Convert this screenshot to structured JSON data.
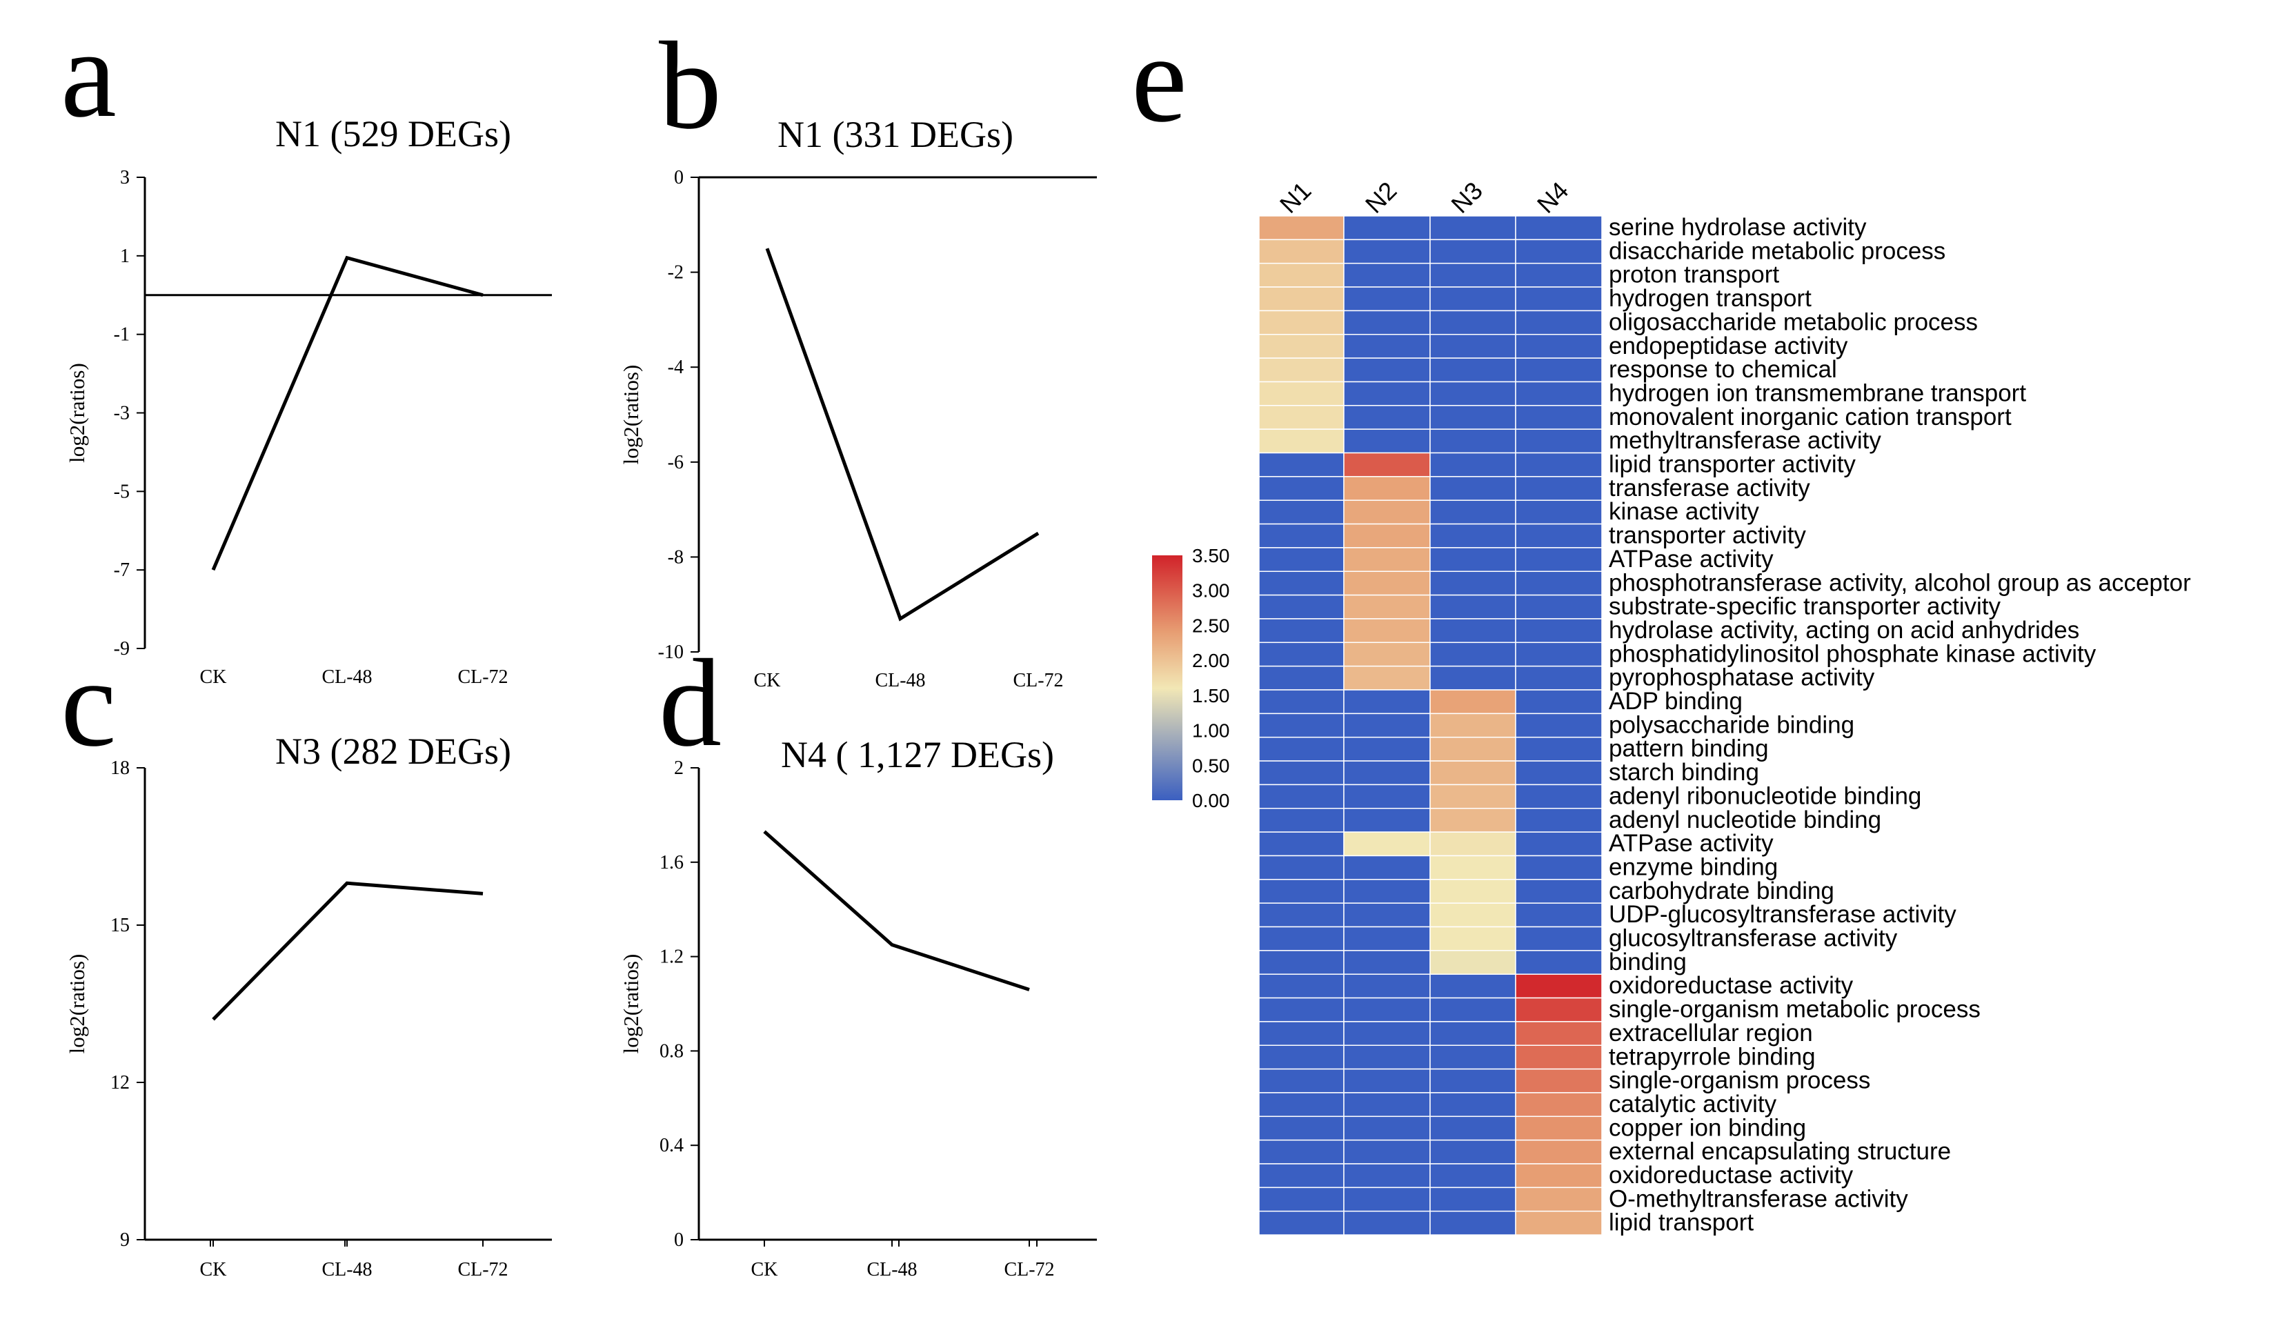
{
  "panels": [
    {
      "letter": "a",
      "title": "N1 (529 DEGs)"
    },
    {
      "letter": "b",
      "title": "N1 (331 DEGs)"
    },
    {
      "letter": "c",
      "title": "N3 (282 DEGs)"
    },
    {
      "letter": "d",
      "title": "N4 ( 1,127 DEGs)"
    },
    {
      "letter": "e",
      "title": ""
    }
  ],
  "chart_data": [
    {
      "type": "line",
      "title": "N1 (529 DEGs)",
      "xlabel": "",
      "ylabel": "log2(ratios)",
      "categories": [
        "CK",
        "CL-48",
        "CL-72"
      ],
      "values": [
        -7.0,
        0.95,
        0.0
      ],
      "yticks": [
        "3",
        "1",
        "-1",
        "-3",
        "-5",
        "-7",
        "-9"
      ],
      "ylim": [
        -9,
        3
      ],
      "reference_line": 0
    },
    {
      "type": "line",
      "title": "N1 (331 DEGs)",
      "xlabel": "",
      "ylabel": "log2(ratios)",
      "categories": [
        "CK",
        "CL-48",
        "CL-72"
      ],
      "values": [
        -1.5,
        -9.3,
        -7.5
      ],
      "yticks": [
        "0",
        "-2",
        "-4",
        "-6",
        "-8",
        "-10"
      ],
      "ylim": [
        -10,
        0
      ],
      "reference_line": 0
    },
    {
      "type": "line",
      "title": "N3 (282 DEGs)",
      "xlabel": "",
      "ylabel": "log2(ratios)",
      "categories": [
        "CK",
        "CL-48",
        "CL-72"
      ],
      "values": [
        13.2,
        15.8,
        15.6
      ],
      "yticks": [
        "18",
        "15",
        "12",
        "9"
      ],
      "ylim": [
        9,
        18
      ]
    },
    {
      "type": "line",
      "title": "N4 ( 1,127 DEGs)",
      "xlabel": "",
      "ylabel": "log2(ratios)",
      "categories": [
        "CK",
        "CL-48",
        "CL-72"
      ],
      "values": [
        1.73,
        1.25,
        1.06
      ],
      "yticks": [
        "2",
        "1.6",
        "1.2",
        "0.8",
        "0.4",
        "0"
      ],
      "ylim": [
        0,
        2
      ]
    },
    {
      "type": "heatmap",
      "title": "",
      "columns": [
        "N1",
        "N2",
        "N3",
        "N4"
      ],
      "rows": [
        "serine hydrolase activity",
        "disaccharide metabolic process",
        "proton transport",
        "hydrogen transport",
        "oligosaccharide metabolic process",
        "endopeptidase activity",
        "response to chemical",
        "hydrogen ion transmembrane transport",
        "monovalent inorganic cation transport",
        "methyltransferase activity",
        "lipid transporter activity",
        "transferase activity",
        "kinase activity",
        "transporter activity",
        "ATPase activity",
        "phosphotransferase activity, alcohol group as acceptor",
        "substrate-specific transporter activity",
        "hydrolase activity, acting on acid anhydrides",
        "phosphatidylinositol phosphate kinase activity",
        "pyrophosphatase activity",
        "ADP binding",
        "polysaccharide binding",
        "pattern binding",
        "starch binding",
        "adenyl ribonucleotide binding",
        "adenyl nucleotide binding",
        "ATPase activity",
        "enzyme binding",
        "carbohydrate binding",
        "UDP-glucosyltransferase activity",
        "glucosyltransferase activity",
        "binding",
        "oxidoreductase activity",
        "single-organism metabolic process",
        "extracellular region",
        "tetrapyrrole binding",
        "single-organism process",
        "catalytic activity",
        "copper ion binding",
        "external encapsulating structure",
        "oxidoreductase activity",
        "O-methyltransferase activity",
        "lipid transport"
      ],
      "values": [
        [
          2.3,
          0,
          0,
          0
        ],
        [
          2.0,
          0,
          0,
          0
        ],
        [
          1.9,
          0,
          0,
          0
        ],
        [
          1.9,
          0,
          0,
          0
        ],
        [
          1.85,
          0,
          0,
          0
        ],
        [
          1.8,
          0,
          0,
          0
        ],
        [
          1.75,
          0,
          0,
          0
        ],
        [
          1.7,
          0,
          0,
          0
        ],
        [
          1.7,
          0,
          0,
          0
        ],
        [
          1.65,
          0,
          0,
          0
        ],
        [
          0,
          3.0,
          0,
          0
        ],
        [
          0,
          2.35,
          0,
          0
        ],
        [
          0,
          2.3,
          0,
          0
        ],
        [
          0,
          2.3,
          0,
          0
        ],
        [
          0,
          2.25,
          0,
          0
        ],
        [
          0,
          2.25,
          0,
          0
        ],
        [
          0,
          2.2,
          0,
          0
        ],
        [
          0,
          2.2,
          0,
          0
        ],
        [
          0,
          2.15,
          0,
          0
        ],
        [
          0,
          2.1,
          0,
          0
        ],
        [
          0,
          0,
          2.35,
          0
        ],
        [
          0,
          0,
          2.15,
          0
        ],
        [
          0,
          0,
          2.15,
          0
        ],
        [
          0,
          0,
          2.15,
          0
        ],
        [
          0,
          0,
          2.1,
          0
        ],
        [
          0,
          0,
          2.1,
          0
        ],
        [
          0,
          1.6,
          1.65,
          0
        ],
        [
          0,
          0,
          1.6,
          0
        ],
        [
          0,
          0,
          1.6,
          0
        ],
        [
          0,
          0,
          1.6,
          0
        ],
        [
          0,
          0,
          1.6,
          0
        ],
        [
          0,
          0,
          1.55,
          0
        ],
        [
          0,
          0,
          0,
          3.45
        ],
        [
          0,
          0,
          0,
          3.2
        ],
        [
          0,
          0,
          0,
          2.9
        ],
        [
          0,
          0,
          0,
          2.85
        ],
        [
          0,
          0,
          0,
          2.75
        ],
        [
          0,
          0,
          0,
          2.6
        ],
        [
          0,
          0,
          0,
          2.5
        ],
        [
          0,
          0,
          0,
          2.45
        ],
        [
          0,
          0,
          0,
          2.4
        ],
        [
          0,
          0,
          0,
          2.3
        ],
        [
          0,
          0,
          0,
          2.25
        ]
      ],
      "colorbar": {
        "ticks": [
          "3.50",
          "3.00",
          "2.50",
          "2.00",
          "1.50",
          "1.00",
          "0.50",
          "0.00"
        ],
        "range": [
          0,
          3.5
        ],
        "colors": [
          "#3b5fc0",
          "#f2e7b5",
          "#d1232a"
        ]
      }
    }
  ]
}
